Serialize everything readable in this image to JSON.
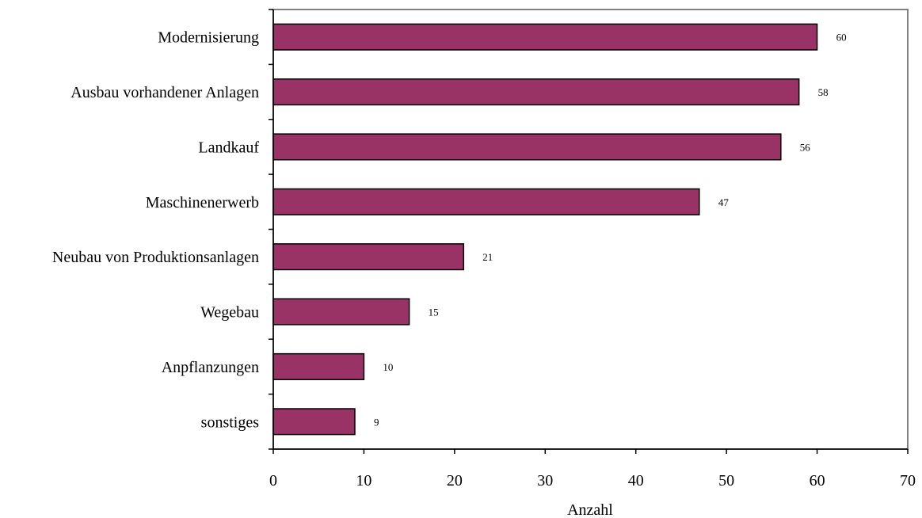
{
  "chart_data": {
    "type": "bar",
    "orientation": "horizontal",
    "categories": [
      "Modernisierung",
      "Ausbau vorhandener Anlagen",
      "Landkauf",
      "Maschinenerwerb",
      "Neubau von Produktionsanlagen",
      "Wegebau",
      "Anpflanzungen",
      "sonstiges"
    ],
    "values": [
      60,
      58,
      56,
      47,
      21,
      15,
      10,
      9
    ],
    "data_labels": [
      "60",
      "58",
      "56",
      "47",
      "21",
      "15",
      "10",
      "9"
    ],
    "xlabel": "Anzahl",
    "ylabel": "",
    "xlim": [
      0,
      70
    ],
    "xticks": [
      "0",
      "10",
      "20",
      "30",
      "40",
      "50",
      "60",
      "70"
    ],
    "grid": false,
    "legend": "none",
    "colors": {
      "bar_fill": "#993366",
      "bar_stroke": "#000000",
      "frame": "#808080",
      "axis": "#000000"
    }
  }
}
